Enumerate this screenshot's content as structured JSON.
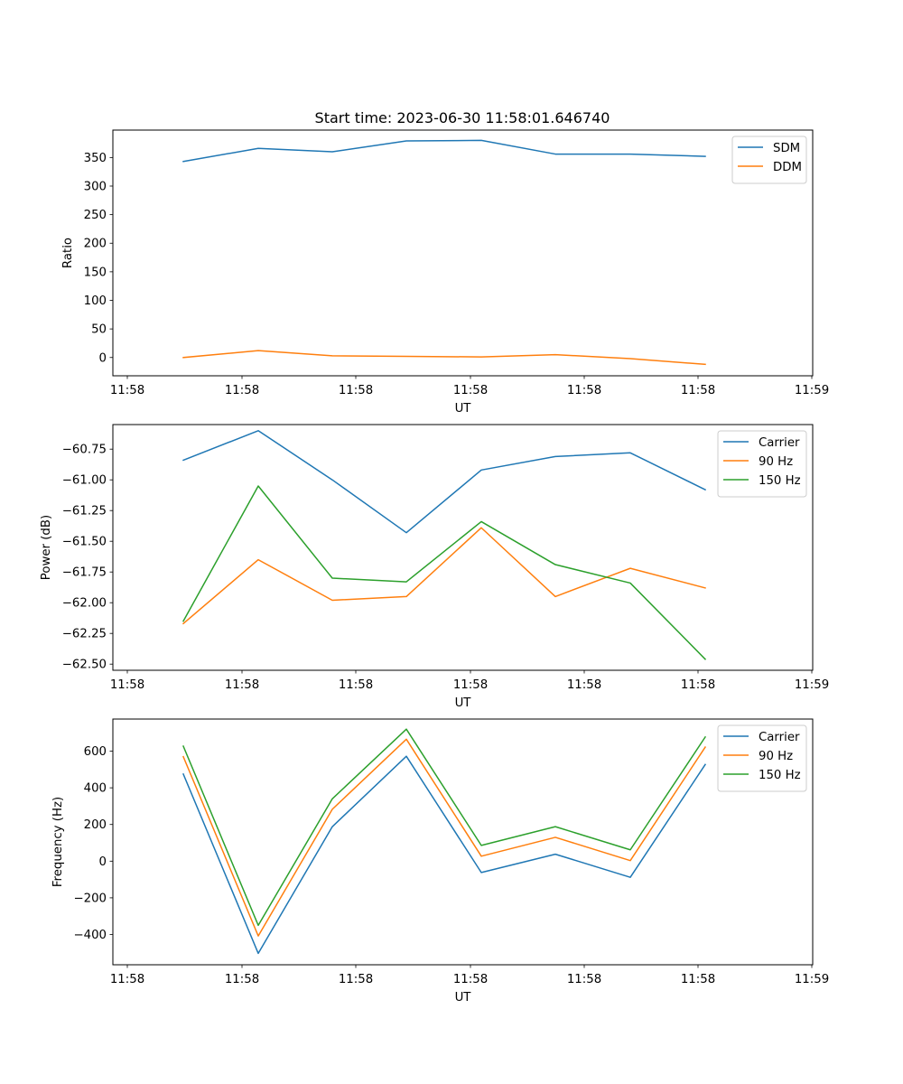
{
  "title": "Start time: 2023-06-30 11:58:01.646740",
  "colors": {
    "blue": "#1f77b4",
    "orange": "#ff7f0e",
    "green": "#2ca02c"
  },
  "chart_data": [
    {
      "type": "line",
      "title": "Start time: 2023-06-30 11:58:01.646740",
      "xlabel": "UT",
      "ylabel": "Ratio",
      "x_tick_labels": [
        "11:58",
        "11:58",
        "11:58",
        "11:58",
        "11:58",
        "11:58",
        "11:59"
      ],
      "y_ticks": [
        0,
        50,
        100,
        150,
        200,
        250,
        300,
        350
      ],
      "ylim": [
        -32,
        398
      ],
      "legend_position": "top-right",
      "grid": false,
      "series": [
        {
          "name": "SDM",
          "color": "#1f77b4",
          "values": [
            343,
            366,
            360,
            379,
            380,
            356,
            356,
            352
          ]
        },
        {
          "name": "DDM",
          "color": "#ff7f0e",
          "values": [
            0,
            12,
            3,
            2,
            1,
            5,
            -2,
            -12
          ]
        }
      ]
    },
    {
      "type": "line",
      "xlabel": "UT",
      "ylabel": "Power (dB)",
      "x_tick_labels": [
        "11:58",
        "11:58",
        "11:58",
        "11:58",
        "11:58",
        "11:58",
        "11:59"
      ],
      "y_ticks": [
        -60.75,
        -61.0,
        -61.25,
        -61.5,
        -61.75,
        -62.0,
        -62.25,
        -62.5
      ],
      "y_tick_labels": [
        "−60.75",
        "−61.00",
        "−61.25",
        "−61.50",
        "−61.75",
        "−62.00",
        "−62.25",
        "−62.50"
      ],
      "ylim": [
        -62.55,
        -60.55
      ],
      "legend_position": "top-right",
      "grid": false,
      "series": [
        {
          "name": "Carrier",
          "color": "#1f77b4",
          "values": [
            -60.84,
            -60.6,
            -61.0,
            -61.43,
            -60.92,
            -60.81,
            -60.78,
            -61.08
          ]
        },
        {
          "name": "90 Hz",
          "color": "#ff7f0e",
          "values": [
            -62.17,
            -61.65,
            -61.98,
            -61.95,
            -61.39,
            -61.95,
            -61.72,
            -61.88
          ]
        },
        {
          "name": "150 Hz",
          "color": "#2ca02c",
          "values": [
            -62.15,
            -61.05,
            -61.8,
            -61.83,
            -61.34,
            -61.69,
            -61.84,
            -62.46
          ]
        }
      ]
    },
    {
      "type": "line",
      "xlabel": "UT",
      "ylabel": "Frequency (Hz)",
      "x_tick_labels": [
        "11:58",
        "11:58",
        "11:58",
        "11:58",
        "11:58",
        "11:58",
        "11:59"
      ],
      "y_ticks": [
        -400,
        -200,
        0,
        200,
        400,
        600
      ],
      "y_tick_labels": [
        "−400",
        "−200",
        "0",
        "200",
        "400",
        "600"
      ],
      "ylim": [
        -565,
        775
      ],
      "legend_position": "top-right",
      "grid": false,
      "series": [
        {
          "name": "Carrier",
          "color": "#1f77b4",
          "values": [
            475,
            -503,
            188,
            572,
            -62,
            38,
            -88,
            527
          ]
        },
        {
          "name": "90 Hz",
          "color": "#ff7f0e",
          "values": [
            570,
            -408,
            283,
            665,
            27,
            130,
            3,
            622
          ]
        },
        {
          "name": "150 Hz",
          "color": "#2ca02c",
          "values": [
            627,
            -350,
            340,
            720,
            86,
            188,
            62,
            677
          ]
        }
      ]
    }
  ]
}
